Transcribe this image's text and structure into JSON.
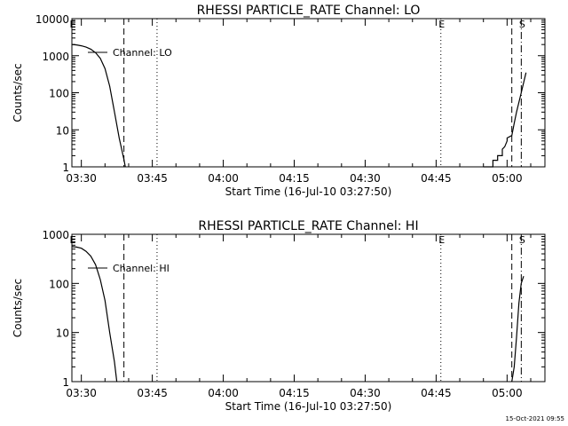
{
  "timestamp": "15-Oct-2021 09:55",
  "chart_data": [
    {
      "type": "line",
      "title": "RHESSI PARTICLE_RATE Channel: LO",
      "xlabel": "Start Time (16-Jul-10 03:27:50)",
      "ylabel": "Counts/sec",
      "y_scale": "log",
      "xlim": [
        "03:28",
        "05:08"
      ],
      "ylim": [
        1,
        10000
      ],
      "x_ticks": [
        "03:30",
        "03:45",
        "04:00",
        "04:15",
        "04:30",
        "04:45",
        "05:00"
      ],
      "y_ticks": [
        "1",
        "10",
        "100",
        "1000",
        "10000"
      ],
      "legend": "Channel: LO",
      "markers": [
        {
          "label": "E",
          "time": "03:28",
          "style": "dotted"
        },
        {
          "label": "",
          "time": "03:39",
          "style": "dashed"
        },
        {
          "label": "",
          "time": "03:46",
          "style": "dotted"
        },
        {
          "label": "E",
          "time": "04:46",
          "style": "dotted"
        },
        {
          "label": "",
          "time": "05:01",
          "style": "dashed"
        },
        {
          "label": "S",
          "time": "05:03",
          "style": "dashdot"
        }
      ],
      "series": [
        {
          "segments": [
            [
              [
                "03:28",
                2000
              ],
              [
                "03:29",
                1950
              ],
              [
                "03:30",
                1850
              ],
              [
                "03:31",
                1700
              ],
              [
                "03:32",
                1500
              ],
              [
                "03:33",
                1200
              ],
              [
                "03:34",
                850
              ],
              [
                "03:35",
                450
              ],
              [
                "03:36",
                150
              ],
              [
                "03:37",
                30
              ],
              [
                "03:38",
                6
              ],
              [
                "03:39",
                1.6
              ],
              [
                "03:39.3",
                1
              ]
            ],
            [
              [
                "04:55",
                1
              ],
              [
                "04:57",
                1
              ],
              [
                "04:57",
                1.5
              ],
              [
                "04:58",
                1.5
              ],
              [
                "04:58",
                2
              ],
              [
                "04:59",
                2
              ],
              [
                "04:59",
                3
              ],
              [
                "04:59.5",
                3.5
              ],
              [
                "05:00",
                5
              ],
              [
                "05:00",
                6
              ],
              [
                "05:01",
                7
              ],
              [
                "05:01.5",
                15
              ],
              [
                "05:02",
                30
              ],
              [
                "05:03",
                100
              ],
              [
                "05:04",
                350
              ]
            ]
          ]
        }
      ]
    },
    {
      "type": "line",
      "title": "RHESSI PARTICLE_RATE Channel: HI",
      "xlabel": "Start Time (16-Jul-10 03:27:50)",
      "ylabel": "Counts/sec",
      "y_scale": "log",
      "xlim": [
        "03:28",
        "05:08"
      ],
      "ylim": [
        1,
        1000
      ],
      "x_ticks": [
        "03:30",
        "03:45",
        "04:00",
        "04:15",
        "04:30",
        "04:45",
        "05:00"
      ],
      "y_ticks": [
        "1",
        "10",
        "100",
        "1000"
      ],
      "legend": "Channel: HI",
      "markers": [
        {
          "label": "E",
          "time": "03:28",
          "style": "dotted"
        },
        {
          "label": "",
          "time": "03:39",
          "style": "dashed"
        },
        {
          "label": "",
          "time": "03:46",
          "style": "dotted"
        },
        {
          "label": "E",
          "time": "04:46",
          "style": "dotted"
        },
        {
          "label": "",
          "time": "05:01",
          "style": "dashed"
        },
        {
          "label": "S",
          "time": "05:03",
          "style": "dashdot"
        }
      ],
      "series": [
        {
          "segments": [
            [
              [
                "03:28",
                560
              ],
              [
                "03:29",
                550
              ],
              [
                "03:30",
                520
              ],
              [
                "03:31",
                450
              ],
              [
                "03:32",
                360
              ],
              [
                "03:33",
                240
              ],
              [
                "03:34",
                120
              ],
              [
                "03:35",
                45
              ],
              [
                "03:36",
                10
              ],
              [
                "03:37",
                2.5
              ],
              [
                "03:37.5",
                1
              ]
            ],
            [
              [
                "05:01",
                1
              ],
              [
                "05:01.5",
                2
              ],
              [
                "05:02",
                8
              ],
              [
                "05:02.5",
                40
              ],
              [
                "05:03",
                100
              ],
              [
                "05:03.5",
                140
              ]
            ]
          ]
        }
      ]
    }
  ]
}
